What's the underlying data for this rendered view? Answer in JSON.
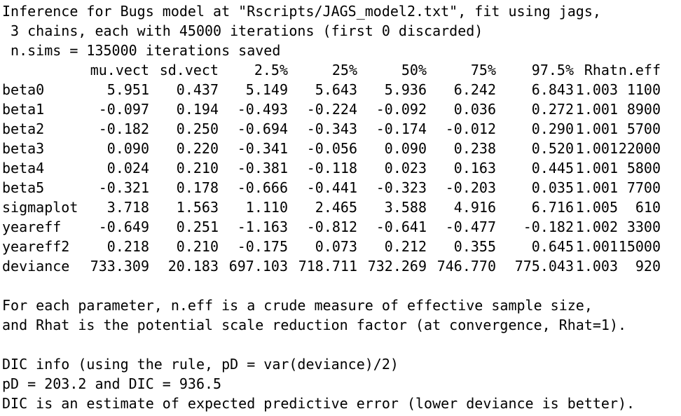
{
  "header": {
    "line1": "Inference for Bugs model at \"Rscripts/JAGS_model2.txt\", fit using jags,",
    "line2": " 3 chains, each with 45000 iterations (first 0 discarded)",
    "line3": " n.sims = 135000 iterations saved"
  },
  "table": {
    "columns": [
      "mu.vect",
      "sd.vect",
      "2.5%",
      "25%",
      "50%",
      "75%",
      "97.5%",
      "Rhat",
      "n.eff"
    ],
    "rows": [
      {
        "name": "beta0",
        "values": [
          "5.951",
          "0.437",
          "5.149",
          "5.643",
          "5.936",
          "6.242",
          "6.843",
          "1.003",
          "1100"
        ]
      },
      {
        "name": "beta1",
        "values": [
          "-0.097",
          "0.194",
          "-0.493",
          "-0.224",
          "-0.092",
          "0.036",
          "0.272",
          "1.001",
          "8900"
        ]
      },
      {
        "name": "beta2",
        "values": [
          "-0.182",
          "0.250",
          "-0.694",
          "-0.343",
          "-0.174",
          "-0.012",
          "0.290",
          "1.001",
          "5700"
        ]
      },
      {
        "name": "beta3",
        "values": [
          "0.090",
          "0.220",
          "-0.341",
          "-0.056",
          "0.090",
          "0.238",
          "0.520",
          "1.001",
          "22000"
        ]
      },
      {
        "name": "beta4",
        "values": [
          "0.024",
          "0.210",
          "-0.381",
          "-0.118",
          "0.023",
          "0.163",
          "0.445",
          "1.001",
          "5800"
        ]
      },
      {
        "name": "beta5",
        "values": [
          "-0.321",
          "0.178",
          "-0.666",
          "-0.441",
          "-0.323",
          "-0.203",
          "0.035",
          "1.001",
          "7700"
        ]
      },
      {
        "name": "sigmaplot",
        "values": [
          "3.718",
          "1.563",
          "1.110",
          "2.465",
          "3.588",
          "4.916",
          "6.716",
          "1.005",
          "610"
        ]
      },
      {
        "name": "yeareff",
        "values": [
          "-0.649",
          "0.251",
          "-1.163",
          "-0.812",
          "-0.641",
          "-0.477",
          "-0.182",
          "1.002",
          "3300"
        ]
      },
      {
        "name": "yeareff2",
        "values": [
          "0.218",
          "0.210",
          "-0.175",
          "0.073",
          "0.212",
          "0.355",
          "0.645",
          "1.001",
          "15000"
        ]
      },
      {
        "name": "deviance",
        "values": [
          "733.309",
          "20.183",
          "697.103",
          "718.711",
          "732.269",
          "746.770",
          "775.043",
          "1.003",
          "920"
        ]
      }
    ]
  },
  "notes": {
    "line1": "For each parameter, n.eff is a crude measure of effective sample size,",
    "line2": "and Rhat is the potential scale reduction factor (at convergence, Rhat=1)."
  },
  "dic": {
    "line1": "DIC info (using the rule, pD = var(deviance)/2)",
    "line2": "pD = 203.2 and DIC = 936.5",
    "line3": "DIC is an estimate of expected predictive error (lower deviance is better)."
  }
}
